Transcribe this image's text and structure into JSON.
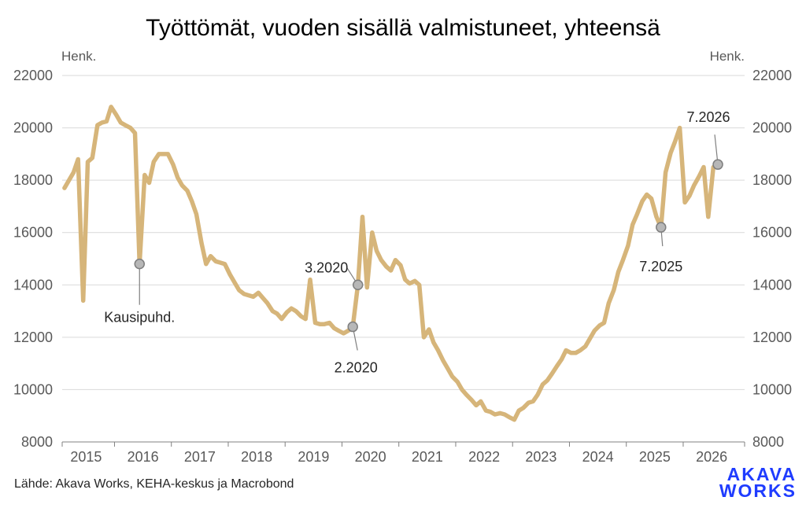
{
  "colors": {
    "line": "#d6b57a",
    "grid": "#d9d9d9",
    "axis": "#808080",
    "marker": "#b7b7b7",
    "logo": "#1f3cff"
  },
  "chart_data": {
    "type": "line",
    "title": "Työttömät, vuoden sisällä valmistuneet, yhteensä",
    "unit_left": "Henk.",
    "unit_right": "Henk.",
    "ylim": [
      8000,
      22000
    ],
    "yticks": [
      8000,
      10000,
      12000,
      14000,
      16000,
      18000,
      20000,
      22000
    ],
    "xlim": [
      2014.58,
      2026.58
    ],
    "xticks": [
      2015,
      2016,
      2017,
      2018,
      2019,
      2020,
      2021,
      2022,
      2023,
      2024,
      2025,
      2026
    ],
    "grid": true,
    "series": [
      {
        "points": [
          [
            2014.62,
            17700
          ],
          [
            2014.7,
            18000
          ],
          [
            2014.78,
            18300
          ],
          [
            2014.86,
            18800
          ],
          [
            2014.95,
            13400
          ],
          [
            2015.03,
            18700
          ],
          [
            2015.11,
            18850
          ],
          [
            2015.2,
            20100
          ],
          [
            2015.28,
            20200
          ],
          [
            2015.36,
            20250
          ],
          [
            2015.44,
            20800
          ],
          [
            2015.53,
            20500
          ],
          [
            2015.61,
            20200
          ],
          [
            2015.69,
            20100
          ],
          [
            2015.78,
            20000
          ],
          [
            2015.86,
            19800
          ],
          [
            2015.94,
            14800
          ],
          [
            2016.03,
            18200
          ],
          [
            2016.11,
            17900
          ],
          [
            2016.19,
            18700
          ],
          [
            2016.28,
            19000
          ],
          [
            2016.36,
            19000
          ],
          [
            2016.44,
            19000
          ],
          [
            2016.53,
            18600
          ],
          [
            2016.61,
            18100
          ],
          [
            2016.69,
            17800
          ],
          [
            2016.78,
            17600
          ],
          [
            2016.86,
            17200
          ],
          [
            2016.94,
            16700
          ],
          [
            2017.03,
            15600
          ],
          [
            2017.11,
            14800
          ],
          [
            2017.19,
            15100
          ],
          [
            2017.28,
            14900
          ],
          [
            2017.36,
            14850
          ],
          [
            2017.44,
            14800
          ],
          [
            2017.53,
            14400
          ],
          [
            2017.61,
            14100
          ],
          [
            2017.69,
            13800
          ],
          [
            2017.78,
            13650
          ],
          [
            2017.86,
            13600
          ],
          [
            2017.94,
            13550
          ],
          [
            2018.03,
            13700
          ],
          [
            2018.11,
            13500
          ],
          [
            2018.19,
            13300
          ],
          [
            2018.28,
            13000
          ],
          [
            2018.36,
            12900
          ],
          [
            2018.44,
            12700
          ],
          [
            2018.53,
            12950
          ],
          [
            2018.61,
            13100
          ],
          [
            2018.69,
            13000
          ],
          [
            2018.78,
            12800
          ],
          [
            2018.86,
            12700
          ],
          [
            2018.94,
            14200
          ],
          [
            2019.03,
            12550
          ],
          [
            2019.11,
            12500
          ],
          [
            2019.19,
            12500
          ],
          [
            2019.28,
            12550
          ],
          [
            2019.36,
            12350
          ],
          [
            2019.44,
            12250
          ],
          [
            2019.53,
            12150
          ],
          [
            2019.61,
            12250
          ],
          [
            2019.69,
            12400
          ],
          [
            2019.78,
            14000
          ],
          [
            2019.86,
            16600
          ],
          [
            2019.94,
            13900
          ],
          [
            2020.03,
            16000
          ],
          [
            2020.11,
            15300
          ],
          [
            2020.19,
            14950
          ],
          [
            2020.28,
            14700
          ],
          [
            2020.36,
            14550
          ],
          [
            2020.44,
            14950
          ],
          [
            2020.53,
            14750
          ],
          [
            2020.61,
            14200
          ],
          [
            2020.69,
            14050
          ],
          [
            2020.78,
            14150
          ],
          [
            2020.86,
            14000
          ],
          [
            2020.94,
            12000
          ],
          [
            2021.03,
            12300
          ],
          [
            2021.11,
            11800
          ],
          [
            2021.19,
            11500
          ],
          [
            2021.28,
            11100
          ],
          [
            2021.36,
            10800
          ],
          [
            2021.44,
            10500
          ],
          [
            2021.53,
            10300
          ],
          [
            2021.61,
            10000
          ],
          [
            2021.69,
            9800
          ],
          [
            2021.78,
            9600
          ],
          [
            2021.86,
            9400
          ],
          [
            2021.94,
            9550
          ],
          [
            2022.03,
            9200
          ],
          [
            2022.11,
            9150
          ],
          [
            2022.19,
            9050
          ],
          [
            2022.28,
            9100
          ],
          [
            2022.36,
            9050
          ],
          [
            2022.44,
            8950
          ],
          [
            2022.53,
            8850
          ],
          [
            2022.61,
            9200
          ],
          [
            2022.69,
            9300
          ],
          [
            2022.78,
            9500
          ],
          [
            2022.86,
            9550
          ],
          [
            2022.94,
            9800
          ],
          [
            2023.03,
            10200
          ],
          [
            2023.11,
            10350
          ],
          [
            2023.19,
            10600
          ],
          [
            2023.28,
            10900
          ],
          [
            2023.36,
            11150
          ],
          [
            2023.44,
            11500
          ],
          [
            2023.53,
            11400
          ],
          [
            2023.61,
            11400
          ],
          [
            2023.69,
            11500
          ],
          [
            2023.78,
            11650
          ],
          [
            2023.86,
            11950
          ],
          [
            2023.94,
            12250
          ],
          [
            2024.03,
            12450
          ],
          [
            2024.11,
            12550
          ],
          [
            2024.19,
            13300
          ],
          [
            2024.28,
            13800
          ],
          [
            2024.36,
            14500
          ],
          [
            2024.44,
            14950
          ],
          [
            2024.53,
            15500
          ],
          [
            2024.61,
            16300
          ],
          [
            2024.69,
            16700
          ],
          [
            2024.78,
            17200
          ],
          [
            2024.86,
            17450
          ],
          [
            2024.94,
            17300
          ],
          [
            2025.03,
            16600
          ],
          [
            2025.11,
            16200
          ],
          [
            2025.19,
            18300
          ],
          [
            2025.28,
            19050
          ],
          [
            2025.36,
            19500
          ],
          [
            2025.44,
            20000
          ],
          [
            2025.53,
            17150
          ],
          [
            2025.61,
            17400
          ],
          [
            2025.69,
            17800
          ],
          [
            2025.78,
            18150
          ],
          [
            2025.86,
            18500
          ],
          [
            2025.94,
            16600
          ],
          [
            2026.03,
            18500
          ],
          [
            2026.11,
            18600
          ]
        ]
      }
    ],
    "markers": [
      {
        "x": 2015.94,
        "y": 14800,
        "label": "Kausipuhd."
      },
      {
        "x": 2019.69,
        "y": 12400,
        "label": "2.2020"
      },
      {
        "x": 2019.78,
        "y": 14000,
        "label": "3.2020"
      },
      {
        "x": 2025.11,
        "y": 16200,
        "label": "7.2025"
      },
      {
        "x": 2026.11,
        "y": 18600,
        "label": "7.2026"
      }
    ],
    "source": "Lähde: Akava Works, KEHA-keskus ja Macrobond"
  },
  "logo": {
    "line1": "AKAVA",
    "line2": "WORKS"
  }
}
